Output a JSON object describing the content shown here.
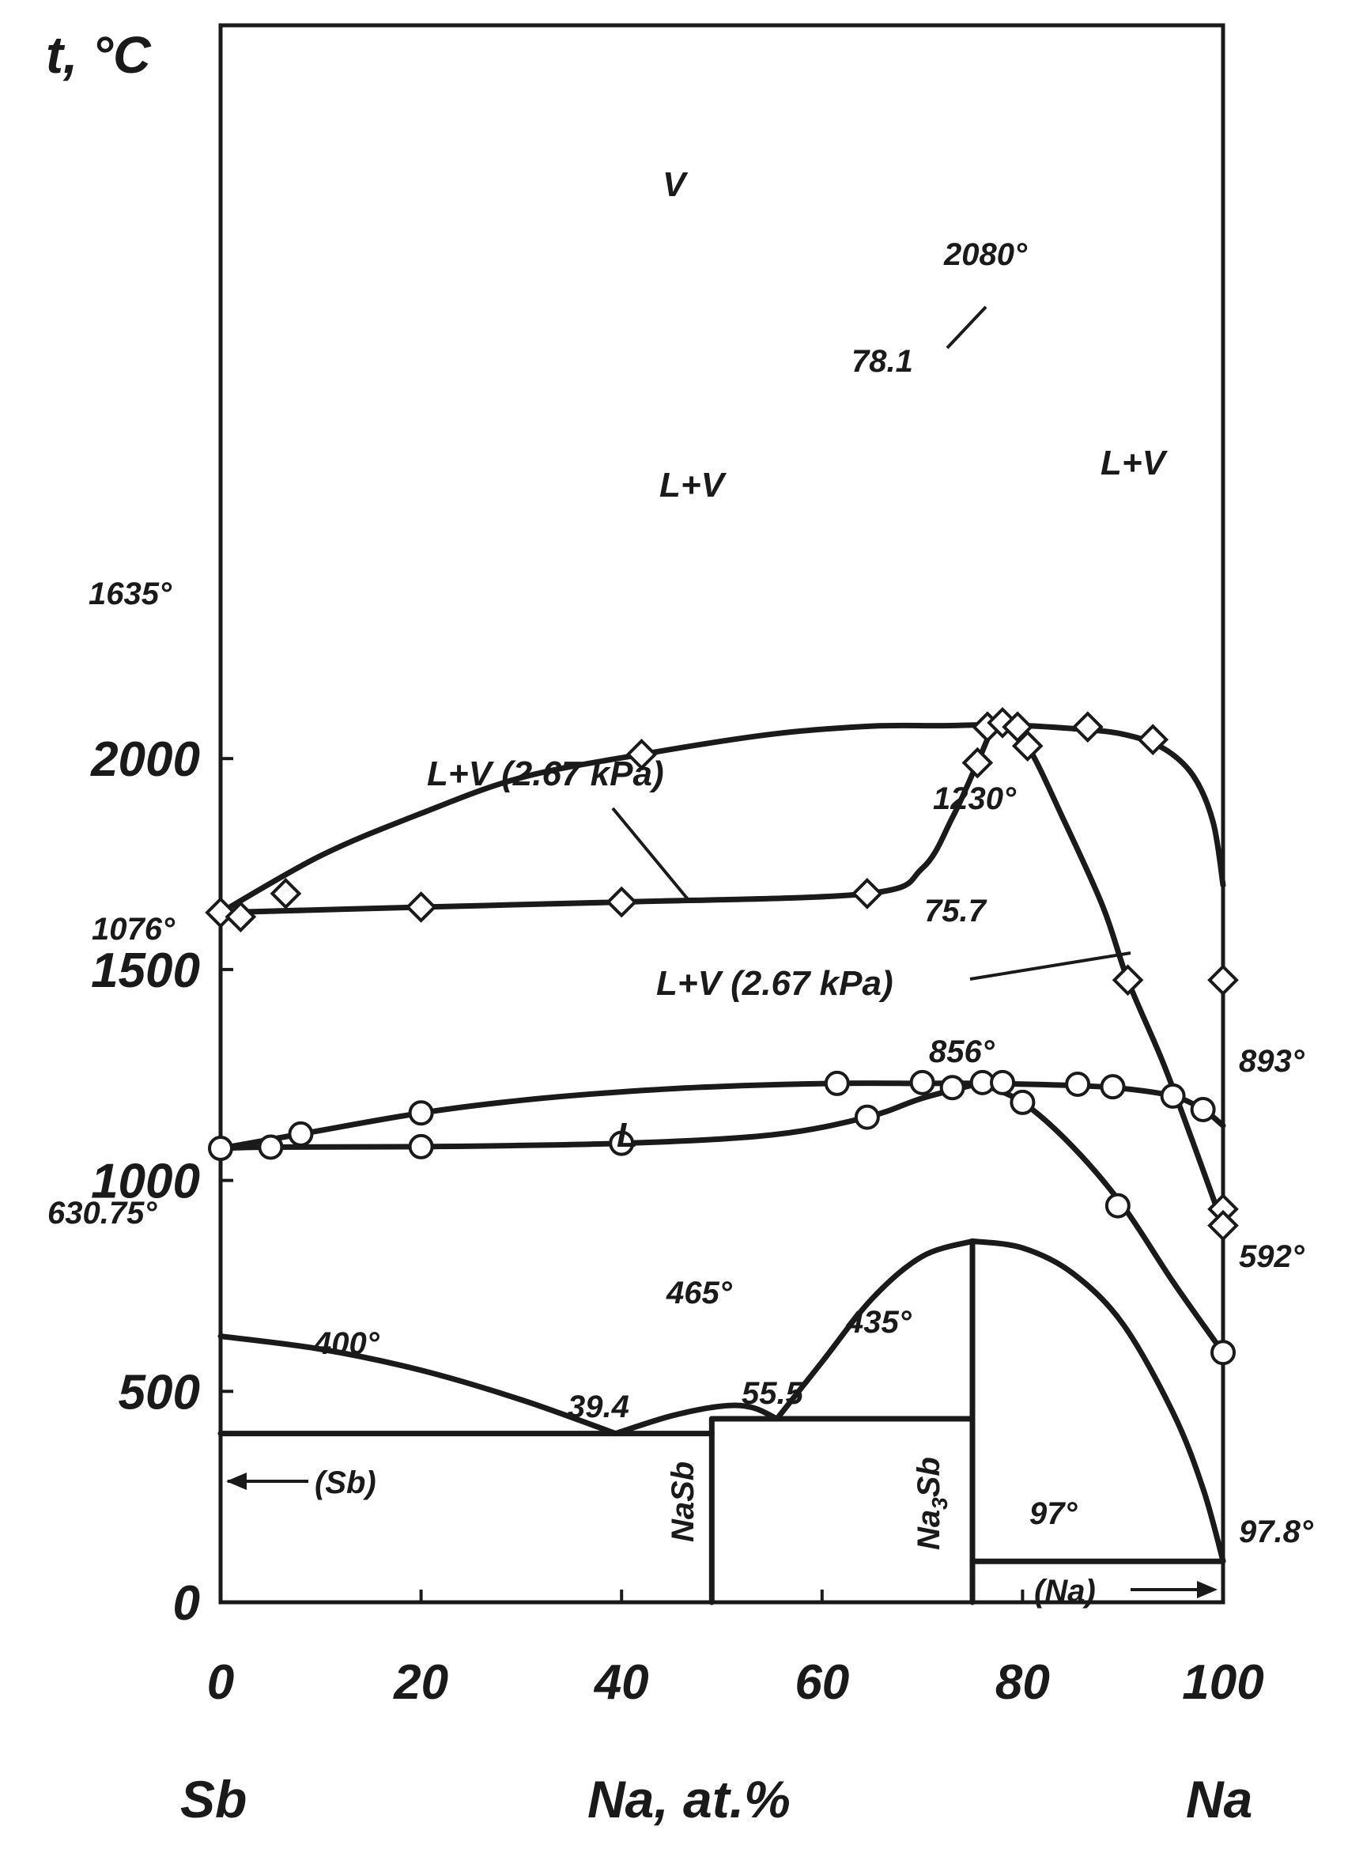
{
  "chart_data": {
    "type": "phase-diagram",
    "title": "",
    "ylabel": "t, °C",
    "xlabel": "Na, at.%",
    "left_component": "Sb",
    "right_component": "Na",
    "xlim": [
      0,
      100
    ],
    "ylim": [
      0,
      2400
    ],
    "x_ticks": [
      0,
      20,
      40,
      60,
      80,
      100
    ],
    "y_ticks": [
      0,
      500,
      1000,
      1500,
      2000
    ],
    "x_tick_labels": [
      "0",
      "20",
      "40",
      "60",
      "80",
      "100"
    ],
    "y_tick_labels": [
      "0",
      "500",
      "1000",
      "1500",
      "2000"
    ],
    "curves": [
      {
        "name": "",
        "points": [
          [
            0,
            1635
          ],
          [
            10,
            1770
          ],
          [
            20,
            1870
          ],
          [
            30,
            1955
          ],
          [
            42,
            2010
          ],
          [
            55,
            2058
          ],
          [
            65,
            2077
          ],
          [
            72,
            2078
          ],
          [
            78.1,
            2080
          ],
          [
            85,
            2071
          ],
          [
            90,
            2058
          ],
          [
            94,
            2025
          ],
          [
            97,
            1960
          ],
          [
            99,
            1850
          ],
          [
            100,
            1700
          ]
        ]
      },
      {
        "name": "",
        "points": [
          [
            0,
            1635
          ],
          [
            20,
            1648
          ],
          [
            40,
            1660
          ],
          [
            64.5,
            1680
          ],
          [
            70,
            1740
          ],
          [
            73,
            1860
          ],
          [
            75.5,
            1990
          ],
          [
            77,
            2070
          ],
          [
            78.1,
            2080
          ]
        ]
      },
      {
        "name": "",
        "points": [
          [
            78.1,
            2080
          ],
          [
            80.5,
            2030
          ],
          [
            84,
            1860
          ],
          [
            88,
            1650
          ],
          [
            90.5,
            1475
          ],
          [
            94,
            1280
          ],
          [
            97,
            1090
          ],
          [
            100,
            893
          ]
        ]
      },
      {
        "name": "",
        "points": [
          [
            0,
            1076
          ],
          [
            8,
            1110
          ],
          [
            20,
            1160
          ],
          [
            30,
            1190
          ],
          [
            40,
            1210
          ],
          [
            50,
            1223
          ],
          [
            61.5,
            1230
          ],
          [
            70,
            1230
          ],
          [
            75.7,
            1230
          ],
          [
            85,
            1225
          ],
          [
            90,
            1218
          ],
          [
            95,
            1200
          ],
          [
            98,
            1168
          ],
          [
            100,
            1130
          ]
        ]
      },
      {
        "name": "",
        "points": [
          [
            0,
            1076
          ],
          [
            5,
            1079
          ],
          [
            20,
            1080
          ],
          [
            40,
            1088
          ],
          [
            55,
            1108
          ],
          [
            64.5,
            1150
          ],
          [
            70,
            1195
          ],
          [
            75.7,
            1230
          ]
        ]
      },
      {
        "name": "",
        "points": [
          [
            75.7,
            1230
          ],
          [
            80,
            1185
          ],
          [
            85,
            1080
          ],
          [
            90,
            940
          ],
          [
            95,
            760
          ],
          [
            100,
            592
          ]
        ]
      },
      {
        "name": "",
        "points": [
          [
            0,
            630.75
          ],
          [
            10,
            600
          ],
          [
            20,
            550
          ],
          [
            30,
            480
          ],
          [
            39.4,
            400
          ]
        ]
      },
      {
        "name": "",
        "points": [
          [
            39.4,
            400
          ],
          [
            45,
            442
          ],
          [
            50,
            465
          ],
          [
            53,
            462
          ],
          [
            55.5,
            435
          ]
        ]
      },
      {
        "name": "",
        "points": [
          [
            55.5,
            435
          ],
          [
            60,
            570
          ],
          [
            65,
            720
          ],
          [
            70,
            820
          ],
          [
            75,
            856
          ]
        ]
      },
      {
        "name": "",
        "points": [
          [
            75,
            856
          ],
          [
            80,
            840
          ],
          [
            85,
            780
          ],
          [
            90,
            660
          ],
          [
            95,
            450
          ],
          [
            98,
            270
          ],
          [
            100,
            97.8
          ]
        ]
      }
    ],
    "markers": {
      "diamonds": [
        [
          0,
          1635
        ],
        [
          2,
          1625
        ],
        [
          6.5,
          1680
        ],
        [
          20,
          1648
        ],
        [
          40,
          1660
        ],
        [
          42,
          2010
        ],
        [
          64.5,
          1680
        ],
        [
          75.5,
          1990
        ],
        [
          76.5,
          2075
        ],
        [
          78,
          2085
        ],
        [
          79.5,
          2075
        ],
        [
          80.5,
          2030
        ],
        [
          86.5,
          2075
        ],
        [
          93,
          2045
        ],
        [
          90.5,
          1475
        ],
        [
          100,
          1475
        ],
        [
          100,
          932
        ],
        [
          100,
          893
        ]
      ],
      "circles": [
        [
          0,
          1076
        ],
        [
          5,
          1079
        ],
        [
          8,
          1110
        ],
        [
          20,
          1080
        ],
        [
          20,
          1160
        ],
        [
          40,
          1088
        ],
        [
          61.5,
          1230
        ],
        [
          64.5,
          1150
        ],
        [
          70,
          1232
        ],
        [
          73,
          1220
        ],
        [
          76,
          1232
        ],
        [
          78,
          1232
        ],
        [
          80,
          1185
        ],
        [
          85.5,
          1228
        ],
        [
          89,
          1222
        ],
        [
          95,
          1200
        ],
        [
          98,
          1168
        ],
        [
          89.5,
          940
        ],
        [
          100,
          592
        ]
      ]
    },
    "horizontal_lines": [
      {
        "y": 400,
        "x": [
          0,
          49
        ]
      },
      {
        "y": 435,
        "x": [
          49,
          75
        ]
      },
      {
        "y": 97,
        "x": [
          75,
          100
        ]
      }
    ],
    "vertical_lines": [
      {
        "x": 49,
        "y": [
          0,
          435
        ]
      },
      {
        "x": 75,
        "y": [
          0,
          856
        ]
      }
    ],
    "labels": {
      "v_region": "V",
      "lv_region_left": "L+V",
      "lv_region_right": "L+V",
      "lv_upper_267": "L+V (2.67 kPa)",
      "lv_lower_267": "L+V (2.67 kPa)",
      "l_region": "L",
      "t2080": "2080°",
      "c78": "78.1",
      "t1635": "1635°",
      "t1230": "1230°",
      "c757": "75.7",
      "t1076": "1076°",
      "t893": "893°",
      "t856": "856°",
      "t63075": "630.75°",
      "t592": "592°",
      "t465": "465°",
      "t435": "435°",
      "t400": "400°",
      "c394": "39.4",
      "c555": "55.5",
      "sb_phase": "(Sb)",
      "nasb": "NaSb",
      "na3sb_pre": "Na",
      "na3sb_sub": "3",
      "na3sb_post": "Sb",
      "t97": "97°",
      "t978": "97.8°",
      "na_phase": "(Na)"
    }
  }
}
